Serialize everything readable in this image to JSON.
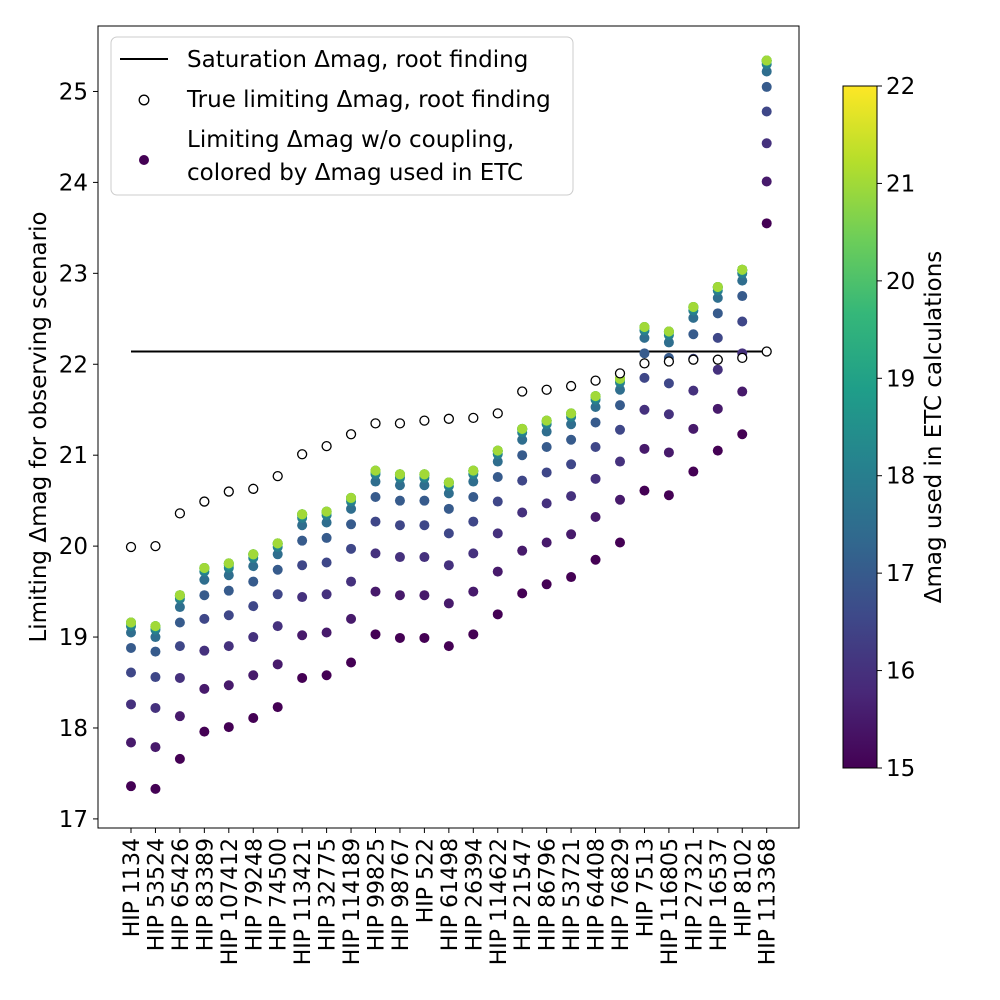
{
  "chart_data": {
    "type": "scatter",
    "ylabel": "Limiting Δmag for observing scenario",
    "xlabel": "",
    "ylim": [
      16.9,
      25.72
    ],
    "yticks": [
      17,
      18,
      19,
      20,
      21,
      22,
      23,
      24,
      25
    ],
    "categories": [
      "HIP 1134",
      "HIP 53524",
      "HIP 65426",
      "HIP 83389",
      "HIP 107412",
      "HIP 79248",
      "HIP 74500",
      "HIP 113421",
      "HIP 32775",
      "HIP 114189",
      "HIP 99825",
      "HIP 98767",
      "HIP 522",
      "HIP 61498",
      "HIP 26394",
      "HIP 114622",
      "HIP 21547",
      "HIP 86796",
      "HIP 53721",
      "HIP 64408",
      "HIP 76829",
      "HIP 7513",
      "HIP 116805",
      "HIP 27321",
      "HIP 16537",
      "HIP 8102",
      "HIP 113368"
    ],
    "legend": {
      "location": "upper-left",
      "entries": [
        "Saturation Δmag, root finding",
        "True limiting Δmag, root finding",
        "Limiting Δmag w/o coupling,",
        "colored by Δmag used in ETC"
      ]
    },
    "saturation": {
      "name": "Saturation Δmag, root finding",
      "value": 22.14
    },
    "true_limiting": {
      "name": "True limiting Δmag, root finding",
      "values": [
        19.99,
        20.0,
        20.36,
        20.49,
        20.6,
        20.63,
        20.77,
        21.01,
        21.1,
        21.23,
        21.35,
        21.35,
        21.38,
        21.4,
        21.41,
        21.46,
        21.7,
        21.72,
        21.76,
        21.82,
        21.9,
        22.01,
        22.03,
        22.05,
        22.05,
        22.07,
        22.14
      ]
    },
    "etc_dmag_levels": [
      15.0,
      15.5,
      16.0,
      16.5,
      17.0,
      17.5,
      18.0,
      18.5,
      19.0,
      19.5,
      20.0,
      20.5,
      21.0
    ],
    "no_coupling": {
      "name": "Limiting Δmag w/o coupling, colored by Δmag used in ETC",
      "values": [
        [
          17.36,
          17.84,
          18.26,
          18.61,
          18.88,
          19.05,
          19.12,
          19.15,
          19.16,
          19.16,
          19.16,
          19.16,
          19.16
        ],
        [
          17.33,
          17.79,
          18.22,
          18.56,
          18.84,
          19.0,
          19.08,
          19.11,
          19.12,
          19.12,
          19.12,
          19.12,
          19.12
        ],
        [
          17.66,
          18.13,
          18.55,
          18.9,
          19.16,
          19.33,
          19.42,
          19.45,
          19.46,
          19.46,
          19.46,
          19.46,
          19.46
        ],
        [
          17.96,
          18.43,
          18.85,
          19.2,
          19.46,
          19.63,
          19.72,
          19.75,
          19.76,
          19.76,
          19.76,
          19.76,
          19.76
        ],
        [
          18.01,
          18.47,
          18.9,
          19.24,
          19.51,
          19.68,
          19.76,
          19.79,
          19.81,
          19.81,
          19.81,
          19.81,
          19.81
        ],
        [
          18.11,
          18.58,
          19.0,
          19.34,
          19.61,
          19.78,
          19.87,
          19.9,
          19.91,
          19.91,
          19.91,
          19.91,
          19.91
        ],
        [
          18.23,
          18.7,
          19.12,
          19.47,
          19.74,
          19.91,
          19.99,
          20.02,
          20.03,
          20.03,
          20.03,
          20.03,
          20.03
        ],
        [
          18.55,
          19.02,
          19.44,
          19.79,
          20.06,
          20.23,
          20.31,
          20.34,
          20.35,
          20.35,
          20.35,
          20.35,
          20.35
        ],
        [
          18.58,
          19.05,
          19.47,
          19.82,
          20.09,
          20.26,
          20.34,
          20.37,
          20.38,
          20.38,
          20.38,
          20.38,
          20.38
        ],
        [
          18.72,
          19.2,
          19.61,
          19.97,
          20.24,
          20.41,
          20.49,
          20.52,
          20.53,
          20.53,
          20.53,
          20.53,
          20.53
        ],
        [
          19.03,
          19.5,
          19.92,
          20.27,
          20.54,
          20.71,
          20.79,
          20.82,
          20.83,
          20.83,
          20.83,
          20.83,
          20.83
        ],
        [
          18.99,
          19.46,
          19.88,
          20.23,
          20.5,
          20.67,
          20.75,
          20.78,
          20.79,
          20.79,
          20.79,
          20.79,
          20.79
        ],
        [
          18.99,
          19.46,
          19.88,
          20.23,
          20.5,
          20.67,
          20.75,
          20.78,
          20.79,
          20.79,
          20.79,
          20.79,
          20.79
        ],
        [
          18.9,
          19.37,
          19.79,
          20.14,
          20.41,
          20.58,
          20.66,
          20.69,
          20.7,
          20.7,
          20.7,
          20.7,
          20.7
        ],
        [
          19.03,
          19.5,
          19.92,
          20.27,
          20.54,
          20.71,
          20.79,
          20.82,
          20.83,
          20.83,
          20.83,
          20.83,
          20.83
        ],
        [
          19.25,
          19.72,
          20.14,
          20.49,
          20.76,
          20.93,
          21.01,
          21.04,
          21.05,
          21.05,
          21.05,
          21.05,
          21.05
        ],
        [
          19.48,
          19.95,
          20.37,
          20.72,
          21.0,
          21.17,
          21.25,
          21.28,
          21.29,
          21.29,
          21.29,
          21.29,
          21.29
        ],
        [
          19.58,
          20.04,
          20.47,
          20.81,
          21.09,
          21.26,
          21.34,
          21.37,
          21.38,
          21.38,
          21.38,
          21.38,
          21.38
        ],
        [
          19.66,
          20.13,
          20.55,
          20.9,
          21.17,
          21.34,
          21.42,
          21.45,
          21.46,
          21.46,
          21.46,
          21.46,
          21.46
        ],
        [
          19.85,
          20.32,
          20.74,
          21.09,
          21.36,
          21.53,
          21.61,
          21.64,
          21.65,
          21.65,
          21.65,
          21.65,
          21.65
        ],
        [
          20.04,
          20.51,
          20.93,
          21.28,
          21.55,
          21.72,
          21.8,
          21.83,
          21.84,
          21.84,
          21.84,
          21.84,
          21.84
        ],
        [
          20.61,
          21.07,
          21.5,
          21.85,
          22.12,
          22.29,
          22.37,
          22.4,
          22.41,
          22.41,
          22.41,
          22.41,
          22.41
        ],
        [
          20.56,
          21.03,
          21.45,
          21.79,
          22.07,
          22.24,
          22.32,
          22.35,
          22.36,
          22.36,
          22.36,
          22.36,
          22.36
        ],
        [
          20.82,
          21.29,
          21.71,
          22.06,
          22.33,
          22.51,
          22.59,
          22.62,
          22.63,
          22.63,
          22.63,
          22.63,
          22.63
        ],
        [
          21.05,
          21.51,
          21.94,
          22.29,
          22.56,
          22.73,
          22.81,
          22.84,
          22.85,
          22.85,
          22.85,
          22.85,
          22.85
        ],
        [
          21.23,
          21.7,
          22.12,
          22.47,
          22.75,
          22.92,
          23.0,
          23.03,
          23.04,
          23.04,
          23.04,
          23.04,
          23.04
        ],
        [
          23.55,
          24.01,
          24.43,
          24.78,
          25.05,
          25.22,
          25.3,
          25.33,
          25.34,
          25.34,
          25.34,
          25.34,
          25.34
        ]
      ]
    },
    "colorbar": {
      "label": "Δmag used in ETC calculations",
      "range": [
        15,
        22
      ],
      "ticks": [
        15,
        16,
        17,
        18,
        19,
        20,
        21,
        22
      ],
      "colormap": "viridis",
      "stops": [
        "#440154",
        "#482878",
        "#3e4989",
        "#31688e",
        "#26828e",
        "#1f9e89",
        "#35b779",
        "#6ece58",
        "#b5de2b",
        "#fde725"
      ]
    },
    "grid": false
  }
}
